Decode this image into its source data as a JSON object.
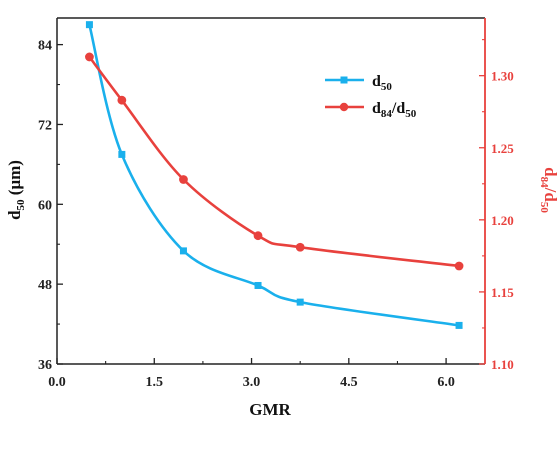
{
  "chart_data": {
    "type": "line",
    "title": "",
    "x": [
      0.5,
      1.0,
      1.95,
      3.1,
      3.75,
      6.2
    ],
    "xlabel": "GMR",
    "xlim": [
      0.0,
      6.6
    ],
    "xticks": [
      "0.0",
      "1.5",
      "3.0",
      "4.5",
      "6.0"
    ],
    "xtick_values": [
      0.0,
      1.5,
      3.0,
      4.5,
      6.0
    ],
    "ylabel_left": {
      "main": "d",
      "sub": "50",
      "unit": " (μm)"
    },
    "ylim_left": [
      36,
      88
    ],
    "yticks_left": [
      "36",
      "48",
      "60",
      "72",
      "84"
    ],
    "ytick_values_left": [
      36,
      48,
      60,
      72,
      84
    ],
    "ylabel_right": {
      "main": "d",
      "sub1": "84",
      "mid": "/d",
      "sub2": "50"
    },
    "ylim_right": [
      1.1,
      1.34
    ],
    "yticks_right": [
      "1.10",
      "1.15",
      "1.20",
      "1.25",
      "1.30"
    ],
    "ytick_values_right": [
      1.1,
      1.15,
      1.2,
      1.25,
      1.3
    ],
    "series": [
      {
        "name": {
          "main": "d",
          "sub": "50"
        },
        "axis": "left",
        "marker": "square",
        "color": "#1ab0ec",
        "values": [
          87.0,
          67.5,
          53.0,
          47.8,
          45.3,
          41.8
        ]
      },
      {
        "name": {
          "main": "d",
          "sub1": "84",
          "mid": "/d",
          "sub2": "50"
        },
        "axis": "right",
        "marker": "circle",
        "color": "#e8413d",
        "values": [
          1.313,
          1.283,
          1.228,
          1.189,
          1.181,
          1.168
        ]
      }
    ],
    "legend_position": "top-right",
    "grid": false
  }
}
